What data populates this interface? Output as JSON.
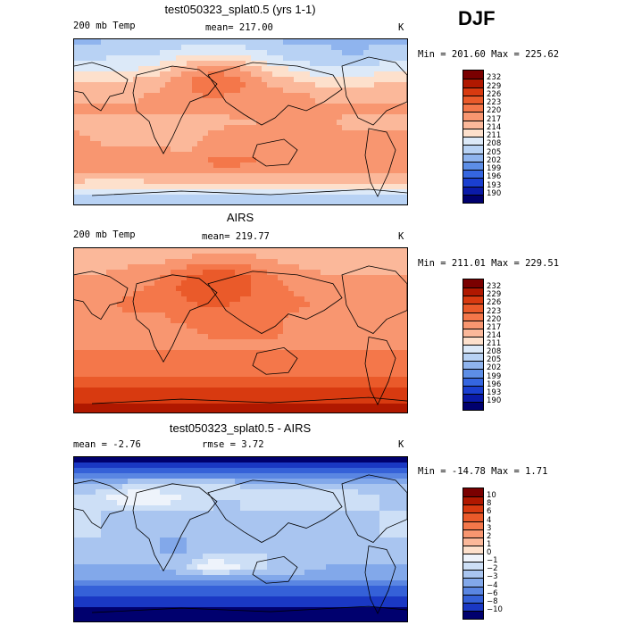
{
  "season": "DJF",
  "panels": [
    {
      "title": "test050323_splat0.5 (yrs 1-1)",
      "left_label": "200 mb Temp",
      "center_label": "mean= 217.00",
      "units": "K",
      "minmax": "Min = 201.60 Max = 225.62",
      "colorbar": {
        "labels": [
          "232",
          "229",
          "226",
          "223",
          "220",
          "217",
          "214",
          "211",
          "208",
          "205",
          "202",
          "199",
          "196",
          "193",
          "190"
        ],
        "colors": [
          "#7a0000",
          "#b01800",
          "#d83a10",
          "#ea5a2a",
          "#f4774a",
          "#f89670",
          "#fbb89a",
          "#fde0cc",
          "#dce9f8",
          "#b8d2f4",
          "#8fb4ee",
          "#5d8ee6",
          "#3566e0",
          "#1a3fd0",
          "#0a1aa8",
          "#00006e"
        ]
      },
      "field": {
        "lon": [
          0,
          30,
          60,
          90,
          120,
          150,
          180,
          210,
          240,
          270,
          300,
          330,
          360
        ],
        "lat": [
          90,
          75,
          60,
          45,
          30,
          15,
          0,
          -15,
          -30,
          -45,
          -60,
          -75,
          -90
        ],
        "values": [
          [
            205,
            205,
            205,
            205,
            206,
            206,
            206,
            205,
            205,
            205,
            205,
            205,
            205
          ],
          [
            206,
            207,
            208,
            208,
            210,
            211,
            210,
            208,
            206,
            206,
            205,
            206,
            206
          ],
          [
            209,
            210,
            210,
            212,
            215,
            218,
            216,
            212,
            210,
            208,
            208,
            209,
            209
          ],
          [
            213,
            213,
            214,
            215,
            219,
            222,
            220,
            216,
            214,
            212,
            212,
            213,
            213
          ],
          [
            216,
            216,
            216,
            217,
            219,
            220,
            219,
            218,
            217,
            216,
            216,
            216,
            216
          ],
          [
            217,
            217,
            217,
            217,
            217,
            217,
            218,
            217,
            217,
            217,
            217,
            217,
            217
          ],
          [
            216,
            216,
            216,
            216,
            216,
            216,
            216,
            217,
            217,
            217,
            216,
            216,
            216
          ],
          [
            217,
            216,
            216,
            216,
            215,
            217,
            218,
            218,
            218,
            217,
            217,
            217,
            217
          ],
          [
            218,
            217,
            217,
            217,
            216,
            218,
            219,
            219,
            218,
            218,
            218,
            218,
            218
          ],
          [
            219,
            219,
            219,
            219,
            219,
            220,
            220,
            219,
            219,
            219,
            219,
            219,
            219
          ],
          [
            216,
            215,
            215,
            216,
            216,
            216,
            216,
            216,
            216,
            216,
            216,
            216,
            216
          ],
          [
            210,
            210,
            210,
            210,
            210,
            210,
            210,
            210,
            210,
            210,
            210,
            210,
            210
          ],
          [
            205,
            205,
            205,
            205,
            205,
            205,
            205,
            205,
            205,
            205,
            205,
            205,
            205
          ]
        ],
        "cmin": 190,
        "cmax": 232
      }
    },
    {
      "title": "AIRS",
      "left_label": "200 mb Temp",
      "center_label": "mean= 219.77",
      "units": "K",
      "minmax": "Min = 211.01 Max = 229.51",
      "colorbar": {
        "labels": [
          "232",
          "229",
          "226",
          "223",
          "220",
          "217",
          "214",
          "211",
          "208",
          "205",
          "202",
          "199",
          "196",
          "193",
          "190"
        ],
        "colors": [
          "#7a0000",
          "#b01800",
          "#d83a10",
          "#ea5a2a",
          "#f4774a",
          "#f89670",
          "#fbb89a",
          "#fde0cc",
          "#dce9f8",
          "#b8d2f4",
          "#8fb4ee",
          "#5d8ee6",
          "#3566e0",
          "#1a3fd0",
          "#0a1aa8",
          "#00006e"
        ]
      },
      "field": {
        "lon": [
          0,
          30,
          60,
          90,
          120,
          150,
          180,
          210,
          240,
          270,
          300,
          330,
          360
        ],
        "lat": [
          90,
          75,
          60,
          45,
          30,
          15,
          0,
          -15,
          -30,
          -45,
          -60,
          -75,
          -90
        ],
        "values": [
          [
            214,
            214,
            214,
            214,
            214,
            215,
            215,
            214,
            214,
            214,
            214,
            214,
            214
          ],
          [
            215,
            215,
            216,
            216,
            218,
            219,
            219,
            217,
            216,
            215,
            215,
            215,
            215
          ],
          [
            217,
            217,
            218,
            219,
            222,
            224,
            223,
            220,
            218,
            217,
            217,
            217,
            217
          ],
          [
            218,
            218,
            219,
            220,
            223,
            224,
            223,
            221,
            219,
            218,
            218,
            218,
            218
          ],
          [
            219,
            219,
            220,
            220,
            222,
            223,
            222,
            221,
            220,
            219,
            219,
            219,
            219
          ],
          [
            219,
            219,
            219,
            219,
            220,
            221,
            221,
            220,
            219,
            219,
            219,
            219,
            219
          ],
          [
            219,
            219,
            219,
            219,
            219,
            220,
            220,
            220,
            219,
            219,
            219,
            219,
            219
          ],
          [
            219,
            219,
            219,
            219,
            219,
            219,
            219,
            219,
            219,
            219,
            219,
            219,
            219
          ],
          [
            220,
            220,
            220,
            220,
            220,
            220,
            220,
            220,
            220,
            220,
            220,
            220,
            220
          ],
          [
            221,
            221,
            221,
            221,
            221,
            221,
            221,
            221,
            221,
            221,
            221,
            221,
            221
          ],
          [
            224,
            224,
            224,
            224,
            224,
            224,
            224,
            224,
            224,
            224,
            224,
            224,
            224
          ],
          [
            227,
            227,
            227,
            227,
            227,
            227,
            227,
            227,
            227,
            227,
            227,
            227,
            227
          ],
          [
            229,
            229,
            229,
            229,
            229,
            229,
            229,
            229,
            229,
            229,
            229,
            229,
            229
          ]
        ],
        "cmin": 190,
        "cmax": 232
      }
    },
    {
      "title": "test050323_splat0.5 - AIRS",
      "left_label": "mean =   -2.76",
      "center_label": "rmse =    3.72",
      "units": "K",
      "minmax": "Min = -14.78 Max =    1.71",
      "colorbar": {
        "labels": [
          "10",
          "8",
          "6",
          "4",
          "3",
          "2",
          "1",
          "0",
          "−1",
          "−2",
          "−3",
          "−4",
          "−6",
          "−8",
          "−10"
        ],
        "colors": [
          "#7a0000",
          "#b01800",
          "#d83a10",
          "#ea5a2a",
          "#f4774a",
          "#f89670",
          "#fbb89a",
          "#fde0cc",
          "#eef3fb",
          "#cddff6",
          "#a9c5f0",
          "#82a8ea",
          "#5a86e2",
          "#3561d8",
          "#1a38c4",
          "#00006e"
        ]
      },
      "field": {
        "lon": [
          0,
          30,
          60,
          90,
          120,
          150,
          180,
          210,
          240,
          270,
          300,
          330,
          360
        ],
        "lat": [
          90,
          75,
          60,
          45,
          30,
          15,
          0,
          -15,
          -30,
          -45,
          -60,
          -75,
          -90
        ],
        "values": [
          [
            -11,
            -11,
            -11,
            -11,
            -11,
            -11,
            -11,
            -11,
            -11,
            -11,
            -11,
            -11,
            -11
          ],
          [
            -7,
            -7,
            -6,
            -6,
            -6,
            -6,
            -7,
            -7,
            -7,
            -7,
            -7,
            -7,
            -7
          ],
          [
            -3,
            -3,
            -2,
            -2,
            -2,
            -1,
            -2,
            -3,
            -3,
            -3,
            -3,
            -3,
            -3
          ],
          [
            -2,
            -1,
            0,
            0,
            -1,
            -2,
            -2,
            -1,
            -1,
            -1,
            -1,
            -2,
            -2
          ],
          [
            -2,
            -2,
            -2,
            -2,
            -2,
            -2,
            -2,
            -2,
            -2,
            -2,
            -2,
            -2,
            -2
          ],
          [
            -1,
            -2,
            -2,
            -2,
            -2,
            -2,
            -2,
            -2,
            -2,
            -2,
            -2,
            -2,
            -1
          ],
          [
            -2,
            -2,
            -2,
            -3,
            -3,
            -3,
            -3,
            -3,
            -3,
            -3,
            -2,
            -2,
            -2
          ],
          [
            -2,
            -2,
            -2,
            -3,
            -3,
            -2,
            -2,
            -2,
            -2,
            -2,
            -2,
            -2,
            -2
          ],
          [
            -3,
            -3,
            -3,
            -3,
            -2,
            0,
            -1,
            -2,
            -2,
            -3,
            -3,
            -3,
            -3
          ],
          [
            -4,
            -4,
            -4,
            -4,
            -4,
            -4,
            -4,
            -4,
            -4,
            -4,
            -4,
            -4,
            -4
          ],
          [
            -8,
            -8,
            -8,
            -8,
            -8,
            -8,
            -8,
            -8,
            -8,
            -8,
            -8,
            -8,
            -8
          ],
          [
            -10,
            -10,
            -10,
            -10,
            -10,
            -10,
            -10,
            -10,
            -10,
            -10,
            -10,
            -10,
            -10
          ],
          [
            -12,
            -12,
            -12,
            -12,
            -12,
            -12,
            -12,
            -12,
            -12,
            -12,
            -12,
            -12,
            -12
          ]
        ],
        "levels": [
          -10,
          -8,
          -6,
          -4,
          -3,
          -2,
          -1,
          0,
          1,
          2,
          3,
          4,
          6,
          8,
          10
        ]
      }
    }
  ]
}
